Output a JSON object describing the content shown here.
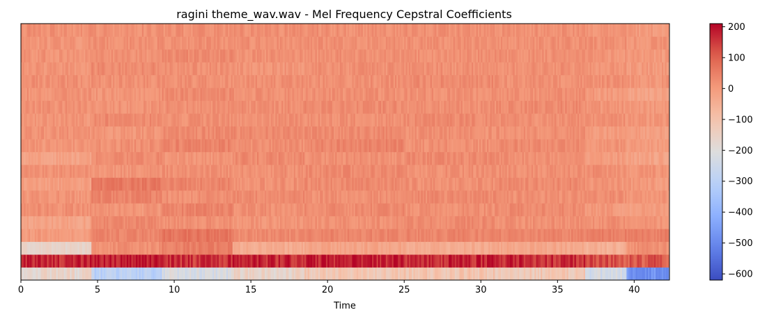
{
  "chart_data": {
    "type": "heatmap",
    "title": "ragini theme_wav.wav - Mel Frequency Cepstral Coefficients",
    "xlabel": "Time",
    "ylabel": "",
    "xlim": [
      0,
      42.3
    ],
    "n_coefficients": 20,
    "x_ticks": [
      "0",
      "5",
      "10",
      "15",
      "20",
      "25",
      "30",
      "35",
      "40"
    ],
    "colorbar": {
      "colormap": "coolwarm",
      "vmin": -620,
      "vmax": 210,
      "ticks": [
        "200",
        "100",
        "0",
        "−100",
        "−200",
        "−300",
        "−400",
        "−500",
        "−600"
      ],
      "tick_values": [
        200,
        100,
        0,
        -100,
        -200,
        -300,
        -400,
        -500,
        -600
      ]
    },
    "segments": [
      {
        "start": 0,
        "end": 4.6,
        "rows": [
          -170,
          170,
          -160,
          0,
          -20,
          20,
          10,
          -10,
          20,
          -20,
          10,
          15,
          10,
          20,
          15,
          20,
          10,
          15,
          10,
          20
        ]
      },
      {
        "start": 4.6,
        "end": 9.2,
        "rows": [
          -300,
          190,
          20,
          40,
          30,
          10,
          40,
          60,
          10,
          30,
          20,
          10,
          30,
          15,
          10,
          20,
          30,
          15,
          20,
          20
        ]
      },
      {
        "start": 9.2,
        "end": 13.8,
        "rows": [
          -220,
          160,
          50,
          70,
          20,
          40,
          20,
          40,
          20,
          10,
          40,
          30,
          20,
          20,
          30,
          20,
          20,
          30,
          20,
          20
        ]
      },
      {
        "start": 13.8,
        "end": 18.5,
        "rows": [
          -160,
          170,
          -40,
          30,
          10,
          20,
          30,
          20,
          20,
          30,
          20,
          30,
          20,
          20,
          20,
          20,
          10,
          20,
          20,
          20
        ]
      },
      {
        "start": 18.5,
        "end": 25.0,
        "rows": [
          -120,
          180,
          -20,
          40,
          20,
          30,
          20,
          30,
          30,
          20,
          40,
          30,
          20,
          30,
          20,
          20,
          20,
          20,
          20,
          20
        ]
      },
      {
        "start": 25.0,
        "end": 31.0,
        "rows": [
          -110,
          170,
          -40,
          40,
          30,
          20,
          30,
          20,
          20,
          30,
          20,
          20,
          30,
          20,
          20,
          30,
          20,
          20,
          20,
          20
        ]
      },
      {
        "start": 31.0,
        "end": 36.8,
        "rows": [
          -120,
          170,
          -30,
          40,
          20,
          30,
          20,
          30,
          20,
          20,
          30,
          20,
          20,
          30,
          20,
          20,
          20,
          20,
          20,
          20
        ]
      },
      {
        "start": 36.8,
        "end": 39.5,
        "rows": [
          -230,
          120,
          -50,
          50,
          20,
          0,
          20,
          10,
          20,
          0,
          10,
          0,
          20,
          10,
          0,
          20,
          10,
          10,
          20,
          10
        ]
      },
      {
        "start": 39.5,
        "end": 42.3,
        "rows": [
          -480,
          110,
          20,
          50,
          10,
          -10,
          10,
          0,
          10,
          -20,
          0,
          -10,
          10,
          0,
          -20,
          10,
          0,
          0,
          10,
          0
        ]
      }
    ]
  }
}
